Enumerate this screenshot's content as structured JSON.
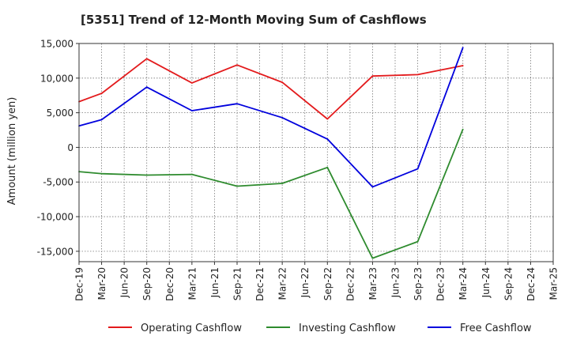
{
  "chart_data": {
    "type": "line",
    "title": "[5351]  Trend of 12-Month Moving Sum of Cashflows",
    "xlabel": "",
    "ylabel": "Amount (million yen)",
    "ylim": [
      -16500,
      15000
    ],
    "y_ticks": [
      15000,
      10000,
      5000,
      0,
      -5000,
      -10000,
      -15000
    ],
    "y_tick_labels": [
      "15,000",
      "10,000",
      "5,000",
      "0",
      "-5,000",
      "-10,000",
      "-15,000"
    ],
    "categories": [
      "Dec-19",
      "Mar-20",
      "Jun-20",
      "Sep-20",
      "Dec-20",
      "Mar-21",
      "Jun-21",
      "Sep-21",
      "Dec-21",
      "Mar-22",
      "Jun-22",
      "Sep-22",
      "Dec-22",
      "Mar-23",
      "Jun-23",
      "Sep-23",
      "Dec-23",
      "Mar-24",
      "Jun-24",
      "Sep-24",
      "Dec-24",
      "Mar-25"
    ],
    "grid": true,
    "legend_position": "bottom",
    "series": [
      {
        "name": "Operating Cashflow",
        "color": "#e31a1c",
        "values": [
          6600,
          7800,
          null,
          12800,
          null,
          9300,
          null,
          11900,
          null,
          9400,
          null,
          4100,
          null,
          10300,
          null,
          10500,
          null,
          11800,
          null,
          null,
          null,
          null
        ]
      },
      {
        "name": "Investing Cashflow",
        "color": "#2e8b2e",
        "values": [
          -3500,
          -3800,
          null,
          -4000,
          null,
          -3900,
          null,
          -5600,
          null,
          -5200,
          null,
          -2900,
          null,
          -16000,
          null,
          -13600,
          null,
          2600,
          null,
          null,
          null,
          null
        ]
      },
      {
        "name": "Free Cashflow",
        "color": "#0000dd",
        "values": [
          3100,
          4000,
          null,
          8700,
          null,
          5300,
          null,
          6300,
          null,
          4300,
          null,
          1200,
          null,
          -5700,
          null,
          -3100,
          null,
          14400,
          null,
          null,
          null,
          null
        ]
      }
    ]
  }
}
